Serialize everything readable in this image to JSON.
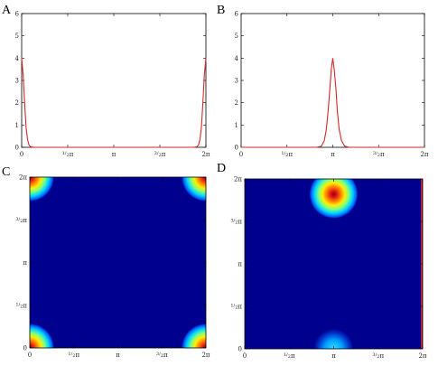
{
  "panels": {
    "a": {
      "label": "A"
    },
    "b": {
      "label": "B"
    },
    "c": {
      "label": "C"
    },
    "d": {
      "label": "D"
    }
  },
  "chart_data": [
    {
      "panel": "A",
      "type": "line",
      "xlim": [
        0,
        6.283
      ],
      "ylim": [
        0,
        6
      ],
      "yticks": [
        "0",
        "1",
        "2",
        "3",
        "4",
        "5",
        "6"
      ],
      "xticks": [
        "0",
        "1/2π",
        "π",
        "3/2π",
        "2π"
      ],
      "series": [
        {
          "color": "#d62728",
          "x": [
            0,
            0.05,
            0.1,
            0.15,
            0.2,
            0.25,
            0.3,
            0.4,
            0.5,
            3.14,
            5.78,
            5.88,
            5.98,
            6.03,
            6.08,
            6.13,
            6.18,
            6.23,
            6.283
          ],
          "y": [
            4.0,
            3.25,
            2.0,
            0.9,
            0.35,
            0.1,
            0.03,
            0.0,
            0.0,
            0.0,
            0.0,
            0.0,
            0.03,
            0.1,
            0.35,
            0.9,
            2.0,
            3.25,
            4.0
          ]
        }
      ]
    },
    {
      "panel": "B",
      "type": "line",
      "xlim": [
        0,
        6.283
      ],
      "ylim": [
        0,
        6
      ],
      "yticks": [
        "0",
        "1",
        "2",
        "3",
        "4",
        "5",
        "6"
      ],
      "xticks": [
        "0",
        "1/2π",
        "π",
        "3/2π",
        "2π"
      ],
      "series": [
        {
          "color": "#d62728",
          "x": [
            0,
            2.6,
            2.75,
            2.85,
            2.92,
            2.98,
            3.04,
            3.09,
            3.14,
            3.19,
            3.25,
            3.3,
            3.36,
            3.44,
            3.55,
            3.7,
            6.283
          ],
          "y": [
            0,
            0,
            0.05,
            0.3,
            0.8,
            1.6,
            2.6,
            3.5,
            4.0,
            3.5,
            2.6,
            1.6,
            0.8,
            0.3,
            0.05,
            0,
            0
          ]
        }
      ]
    },
    {
      "panel": "C",
      "type": "heatmap",
      "xlim": [
        0,
        6.283
      ],
      "ylim": [
        0,
        6.283
      ],
      "xticks": [
        "0",
        "1/2π",
        "π",
        "3/2π",
        "2π"
      ],
      "yticks": [
        "0",
        "1/2π",
        "π",
        "3/2π",
        "2π"
      ],
      "peaks": [
        {
          "x": 0,
          "y": 0,
          "value": 1.0
        },
        {
          "x": 6.283,
          "y": 0,
          "value": 1.0
        },
        {
          "x": 0,
          "y": 6.283,
          "value": 1.0
        },
        {
          "x": 6.283,
          "y": 6.283,
          "value": 1.0
        }
      ]
    },
    {
      "panel": "D",
      "type": "heatmap",
      "xlim": [
        0,
        6.283
      ],
      "ylim": [
        0,
        6.283
      ],
      "xticks": [
        "0",
        "1/2π",
        "π",
        "3/2π",
        "2π"
      ],
      "yticks": [
        "0",
        "1/2π",
        "π",
        "3/2π",
        "2π"
      ],
      "peaks": [
        {
          "x": 3.14,
          "y": 5.72,
          "value": 1.0
        },
        {
          "x": 3.14,
          "y": 0,
          "value": 0.45
        }
      ]
    }
  ]
}
